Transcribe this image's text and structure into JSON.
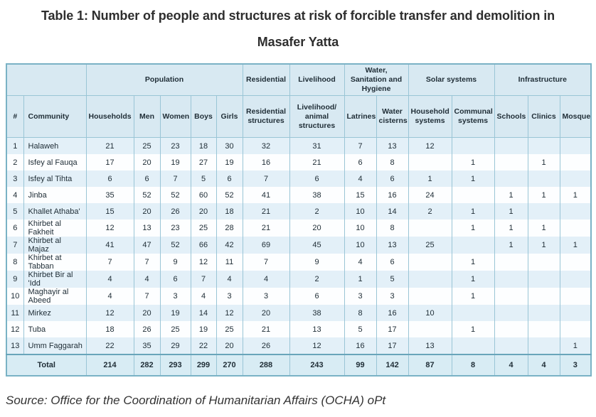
{
  "colors": {
    "header_bg": "#d8e9f2",
    "stripe_row_bg": "#e3f0f8",
    "plain_row_bg": "#fdfeff",
    "total_row_bg": "#d8ecf4",
    "outer_border": "#7ab2c5",
    "grid_line": "#9ac5d6",
    "text": "#212f38"
  },
  "chart_data": {
    "type": "table",
    "title": "Table 1: Number of people and structures at risk of forcible transfer and demolition in Masafer Yatta",
    "source": "Source: Office for the Coordination of Humanitarian Affairs (OCHA) oPt",
    "group_headers": [
      {
        "label": "",
        "colspan": 2
      },
      {
        "label": "Population",
        "colspan": 5
      },
      {
        "label": "Residential",
        "colspan": 1
      },
      {
        "label": "Livelihood",
        "colspan": 1
      },
      {
        "label": "Water, Sanitation and Hygiene",
        "colspan": 2
      },
      {
        "label": "Solar systems",
        "colspan": 2
      },
      {
        "label": "Infrastructure",
        "colspan": 3
      }
    ],
    "columns": [
      "#",
      "Community",
      "Households",
      "Men",
      "Women",
      "Boys",
      "Girls",
      "Residential structures",
      "Livelihood/ animal structures",
      "Latrines",
      "Water cisterns",
      "Household systems",
      "Communal systems",
      "Schools",
      "Clinics",
      "Mosques"
    ],
    "rows": [
      [
        "1",
        "Halaweh",
        "21",
        "25",
        "23",
        "18",
        "30",
        "32",
        "31",
        "7",
        "13",
        "12",
        "",
        "",
        "",
        ""
      ],
      [
        "2",
        "Isfey al Fauqa",
        "17",
        "20",
        "19",
        "27",
        "19",
        "16",
        "21",
        "6",
        "8",
        "",
        "1",
        "",
        "1",
        ""
      ],
      [
        "3",
        "Isfey al Tihta",
        "6",
        "6",
        "7",
        "5",
        "6",
        "7",
        "6",
        "4",
        "6",
        "1",
        "1",
        "",
        "",
        ""
      ],
      [
        "4",
        "Jinba",
        "35",
        "52",
        "52",
        "60",
        "52",
        "41",
        "38",
        "15",
        "16",
        "24",
        "",
        "1",
        "1",
        "1"
      ],
      [
        "5",
        "Khallet Athaba'",
        "15",
        "20",
        "26",
        "20",
        "18",
        "21",
        "2",
        "10",
        "14",
        "2",
        "1",
        "1",
        "",
        ""
      ],
      [
        "6",
        "Khirbet al Fakheit",
        "12",
        "13",
        "23",
        "25",
        "28",
        "21",
        "20",
        "10",
        "8",
        "",
        "1",
        "1",
        "1",
        ""
      ],
      [
        "7",
        "Khirbet al Majaz",
        "41",
        "47",
        "52",
        "66",
        "42",
        "69",
        "45",
        "10",
        "13",
        "25",
        "",
        "1",
        "1",
        "1"
      ],
      [
        "8",
        "Khirbet at Tabban",
        "7",
        "7",
        "9",
        "12",
        "11",
        "7",
        "9",
        "4",
        "6",
        "",
        "1",
        "",
        "",
        ""
      ],
      [
        "9",
        "Khirbet Bir al 'Idd",
        "4",
        "4",
        "6",
        "7",
        "4",
        "4",
        "2",
        "1",
        "5",
        "",
        "1",
        "",
        "",
        ""
      ],
      [
        "10",
        "Maghayir al Abeed",
        "4",
        "7",
        "3",
        "4",
        "3",
        "3",
        "6",
        "3",
        "3",
        "",
        "1",
        "",
        "",
        ""
      ],
      [
        "11",
        "Mirkez",
        "12",
        "20",
        "19",
        "14",
        "12",
        "20",
        "38",
        "8",
        "16",
        "10",
        "",
        "",
        "",
        ""
      ],
      [
        "12",
        "Tuba",
        "18",
        "26",
        "25",
        "19",
        "25",
        "21",
        "13",
        "5",
        "17",
        "",
        "1",
        "",
        "",
        ""
      ],
      [
        "13",
        "Umm Faggarah",
        "22",
        "35",
        "29",
        "22",
        "20",
        "26",
        "12",
        "16",
        "17",
        "13",
        "",
        "",
        "",
        "1"
      ]
    ],
    "total_row": {
      "label": "Total",
      "values": [
        "214",
        "282",
        "293",
        "299",
        "270",
        "288",
        "243",
        "99",
        "142",
        "87",
        "8",
        "4",
        "4",
        "3"
      ]
    }
  }
}
